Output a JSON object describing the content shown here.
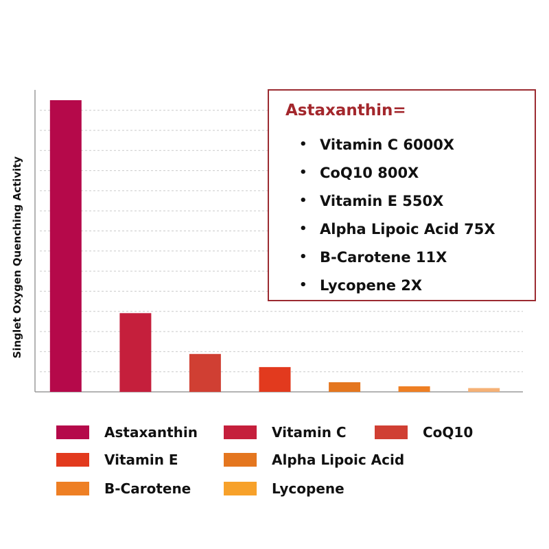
{
  "chart_data": {
    "type": "bar",
    "title": "",
    "xlabel": "",
    "ylabel": "Singlet Oxygen Quenching Activity",
    "categories": [
      "Astaxanthin",
      "Vitamin C",
      "CoQ10",
      "Vitamin E",
      "Alpha Lipoic Acid",
      "B-Carotene",
      "Lycopene"
    ],
    "values": [
      100,
      27,
      13,
      8.5,
      3.3,
      1.9,
      1.3
    ],
    "colors": [
      "#b5094a",
      "#c51f3c",
      "#d03f33",
      "#e23a1e",
      "#e4761f",
      "#ee7f24",
      "#f5b176"
    ],
    "ylim": [
      0,
      100
    ],
    "grid": true,
    "legend_position": "bottom",
    "legend": [
      {
        "label": "Astaxanthin",
        "color": "#b5094a"
      },
      {
        "label": "Vitamin C",
        "color": "#c51f3c"
      },
      {
        "label": "CoQ10",
        "color": "#d03f33"
      },
      {
        "label": "Vitamin E",
        "color": "#e23a1e"
      },
      {
        "label": "Alpha Lipoic Acid",
        "color": "#e4761f"
      },
      {
        "label": "B-Carotene",
        "color": "#ee7f24"
      },
      {
        "label": "Lycopene",
        "color": "#f7a12a"
      }
    ],
    "annotation": {
      "title": "Astaxanthin=",
      "items": [
        {
          "text": "Vitamin C  6000X"
        },
        {
          "text": "CoQ10  800X"
        },
        {
          "text": "Vitamin E  550X"
        },
        {
          "text": "Alpha Lipoic Acid  75X"
        },
        {
          "text": "B-Carotene  11X"
        },
        {
          "text": "Lycopene  2X"
        }
      ]
    }
  }
}
